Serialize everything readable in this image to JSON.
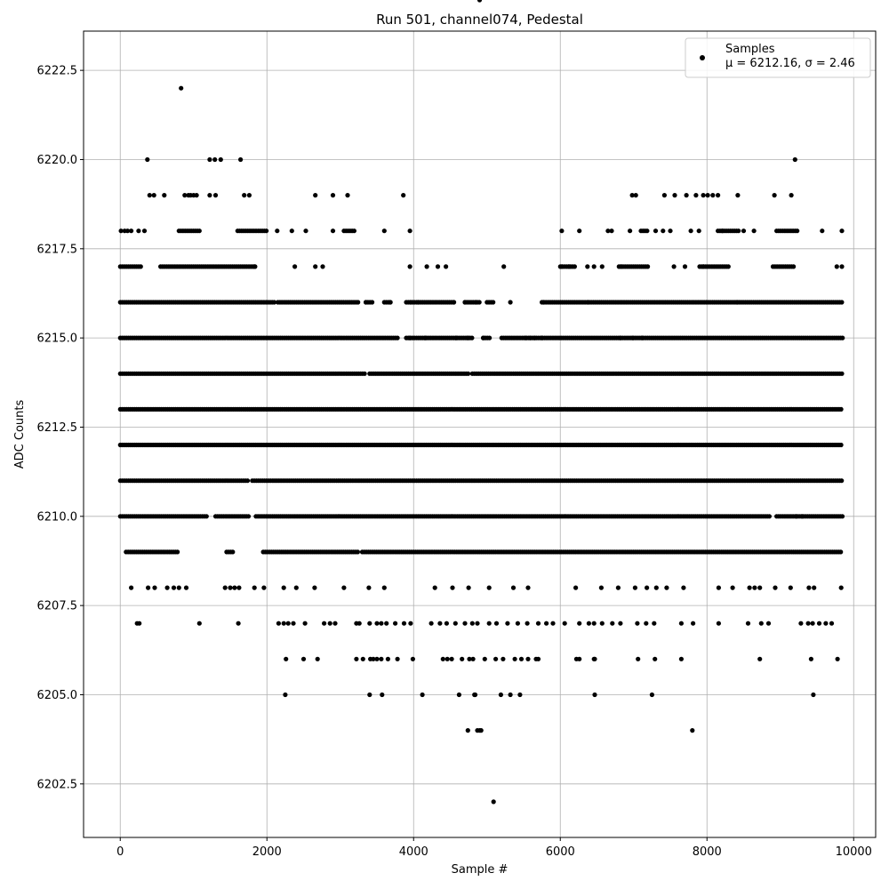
{
  "chart_data": {
    "type": "scatter",
    "title": "Run 501, channel074, Pedestal",
    "xlabel": "Sample #",
    "ylabel": "ADC Counts",
    "xlim": [
      -500,
      10300
    ],
    "ylim": [
      6201.0,
      6223.6
    ],
    "xticks": [
      0,
      2000,
      4000,
      6000,
      8000,
      10000
    ],
    "xtick_labels": [
      "0",
      "2000",
      "4000",
      "6000",
      "8000",
      "10000"
    ],
    "yticks": [
      6202.5,
      6205.0,
      6207.5,
      6210.0,
      6212.5,
      6215.0,
      6217.5,
      6220.0,
      6222.5
    ],
    "ytick_labels": [
      "6202.5",
      "6205.0",
      "6207.5",
      "6210.0",
      "6212.5",
      "6215.0",
      "6217.5",
      "6220.0",
      "6222.5"
    ],
    "grid": true,
    "legend_position": "top-right",
    "marker_color": "#000000",
    "series": [
      {
        "name": "Samples",
        "legend_stats": "μ = 6212.16, σ = 2.46",
        "points_x": [
          830,
          370,
          1220,
          1290,
          1370,
          1640,
          9200,
          400,
          460,
          600,
          880,
          930,
          960,
          1000,
          1040,
          1220,
          1300,
          1690,
          1760,
          2660,
          2900,
          3100,
          3860,
          6980,
          7030,
          7420,
          7560,
          7720,
          7850,
          7950,
          8010,
          8080,
          8150,
          8420,
          8920,
          9150,
          10,
          60,
          100,
          150,
          250,
          330,
          2140,
          2340,
          2530,
          2900,
          3600,
          3950,
          6020,
          6260,
          6650,
          6700,
          6950,
          7300,
          7400,
          7500,
          7780,
          7890,
          8210,
          8500,
          8640,
          9570,
          9840,
          1830,
          2380,
          2660,
          2760,
          3950,
          4180,
          4330,
          4440,
          5230,
          6020,
          6120,
          6370,
          6460,
          6570,
          6830,
          7550,
          7700,
          7950,
          9770,
          9840,
          3350,
          3680,
          3960,
          4060,
          4550,
          4700,
          4850,
          5320,
          5770,
          6380,
          8410,
          3950,
          4160,
          4580,
          4740,
          4950,
          5530,
          5590,
          5650,
          5750,
          6820,
          6990,
          7120,
          9220,
          9300,
          150,
          380,
          470,
          640,
          730,
          800,
          900,
          1430,
          1500,
          1560,
          1620,
          1830,
          1960,
          2230,
          2400,
          2650,
          3050,
          3390,
          3600,
          4290,
          4530,
          4750,
          5030,
          5360,
          5560,
          6210,
          6560,
          6790,
          7020,
          7180,
          7310,
          7450,
          7680,
          8160,
          8350,
          8580,
          8650,
          8720,
          8930,
          9140,
          9390,
          9460,
          9830,
          230,
          260,
          1080,
          1610,
          2160,
          2230,
          2290,
          2360,
          2520,
          2780,
          2860,
          2930,
          3220,
          3260,
          3400,
          3500,
          3560,
          3630,
          3750,
          3870,
          3960,
          4240,
          4360,
          4450,
          4570,
          4700,
          4800,
          4870,
          5030,
          5130,
          5280,
          5420,
          5550,
          5700,
          5810,
          5900,
          6060,
          6260,
          6390,
          6460,
          6570,
          6710,
          6820,
          7050,
          7170,
          7280,
          7650,
          7810,
          8160,
          8560,
          8740,
          8840,
          9280,
          9380,
          9440,
          9530,
          9620,
          9700,
          9780,
          2260,
          2500,
          2690,
          3220,
          3310,
          3410,
          3450,
          3500,
          3560,
          3650,
          3780,
          3990,
          4400,
          4460,
          4520,
          4660,
          4760,
          4810,
          4970,
          5120,
          5220,
          5380,
          5470,
          5560,
          5670,
          5700,
          6220,
          6260,
          6460,
          6470,
          7060,
          7290,
          7650,
          8720,
          9420,
          9450,
          2250,
          3400,
          3570,
          4120,
          4620,
          4830,
          4840,
          5190,
          5320,
          5450,
          6470,
          7250,
          7800,
          4740,
          4870,
          4900,
          4920,
          5090,
          4900
        ],
        "points_y": [
          6222,
          6220,
          6220,
          6220,
          6220,
          6220,
          6220,
          6219,
          6219,
          6219,
          6219,
          6219,
          6219,
          6219,
          6219,
          6219,
          6219,
          6219,
          6219,
          6219,
          6219,
          6219,
          6219,
          6219,
          6219,
          6219,
          6219,
          6219,
          6219,
          6219,
          6219,
          6219,
          6219,
          6219,
          6219,
          6219,
          6218,
          6218,
          6218,
          6218,
          6218,
          6218,
          6218,
          6218,
          6218,
          6218,
          6218,
          6218,
          6218,
          6218,
          6218,
          6218,
          6218,
          6218,
          6218,
          6218,
          6218,
          6218,
          6218,
          6218,
          6218,
          6218,
          6218,
          6217,
          6217,
          6217,
          6217,
          6217,
          6217,
          6217,
          6217,
          6217,
          6217,
          6217,
          6217,
          6217,
          6217,
          6217,
          6217,
          6217,
          6217,
          6217,
          6217,
          6216,
          6216,
          6216,
          6216,
          6216,
          6216,
          6216,
          6216,
          6216,
          6216,
          6216,
          6215,
          6215,
          6215,
          6215,
          6215,
          6215,
          6215,
          6215,
          6215,
          6215,
          6215,
          6215,
          6210,
          6210,
          6208,
          6208,
          6208,
          6208,
          6208,
          6208,
          6208,
          6208,
          6208,
          6208,
          6208,
          6208,
          6208,
          6208,
          6208,
          6208,
          6208,
          6208,
          6208,
          6208,
          6208,
          6208,
          6208,
          6208,
          6208,
          6208,
          6208,
          6208,
          6208,
          6208,
          6208,
          6208,
          6208,
          6208,
          6208,
          6208,
          6208,
          6208,
          6208,
          6208,
          6208,
          6208,
          6208,
          6207,
          6207,
          6207,
          6207,
          6207,
          6207,
          6207,
          6207,
          6207,
          6207,
          6207,
          6207,
          6207,
          6207,
          6207,
          6207,
          6207,
          6207,
          6207,
          6207,
          6207,
          6207,
          6207,
          6207,
          6207,
          6207,
          6207,
          6207,
          6207,
          6207,
          6207,
          6207,
          6207,
          6207,
          6207,
          6207,
          6207,
          6207,
          6207,
          6207,
          6207,
          6207,
          6207,
          6207,
          6207,
          6207,
          6207,
          6207,
          6207,
          6207,
          6207,
          6207,
          6207,
          6207,
          6207,
          6207,
          6207,
          6207,
          6206,
          6206,
          6206,
          6206,
          6206,
          6206,
          6206,
          6206,
          6206,
          6206,
          6206,
          6206,
          6206,
          6206,
          6206,
          6206,
          6206,
          6206,
          6206,
          6206,
          6206,
          6206,
          6206,
          6206,
          6206,
          6206,
          6206,
          6206,
          6206,
          6206,
          6206,
          6206,
          6206,
          6206,
          6206,
          6206,
          6205,
          6205,
          6205,
          6205,
          6205,
          6205,
          6205,
          6205,
          6205,
          6205,
          6205,
          6205,
          6205,
          6204,
          6204,
          6204,
          6204,
          6204,
          6202
        ],
        "dense_bands": [
          {
            "y": 6216,
            "x_ranges": [
              [
                0,
                2100
              ],
              [
                2150,
                3250
              ],
              [
                3350,
                3450
              ],
              [
                3600,
                3700
              ],
              [
                3900,
                4550
              ],
              [
                4700,
                4900
              ],
              [
                5000,
                5100
              ],
              [
                5750,
                9850
              ]
            ]
          },
          {
            "y": 6215,
            "x_ranges": [
              [
                0,
                3800
              ],
              [
                3900,
                4800
              ],
              [
                4950,
                5050
              ],
              [
                5200,
                9850
              ]
            ]
          },
          {
            "y": 6214,
            "x_ranges": [
              [
                0,
                3350
              ],
              [
                3400,
                4750
              ],
              [
                4800,
                9850
              ]
            ]
          },
          {
            "y": 6213,
            "x_ranges": [
              [
                0,
                9850
              ]
            ]
          },
          {
            "y": 6212,
            "x_ranges": [
              [
                0,
                9850
              ]
            ]
          },
          {
            "y": 6211,
            "x_ranges": [
              [
                0,
                1750
              ],
              [
                1800,
                9850
              ]
            ]
          },
          {
            "y": 6210,
            "x_ranges": [
              [
                0,
                1200
              ],
              [
                1300,
                1750
              ],
              [
                1850,
                8850
              ],
              [
                8950,
                9850
              ]
            ]
          },
          {
            "y": 6209,
            "x_ranges": [
              [
                80,
                780
              ],
              [
                1450,
                1550
              ],
              [
                1950,
                3250
              ],
              [
                3300,
                9850
              ]
            ]
          },
          {
            "y": 6217,
            "x_ranges": [
              [
                0,
                300
              ],
              [
                550,
                1850
              ],
              [
                6000,
                6200
              ],
              [
                6800,
                7200
              ],
              [
                7900,
                8300
              ],
              [
                8900,
                9200
              ]
            ]
          },
          {
            "y": 6218,
            "x_ranges": [
              [
                800,
                1100
              ],
              [
                1600,
                2000
              ],
              [
                3050,
                3200
              ],
              [
                7100,
                7200
              ],
              [
                8150,
                8450
              ],
              [
                8950,
                9250
              ]
            ]
          }
        ]
      }
    ]
  }
}
